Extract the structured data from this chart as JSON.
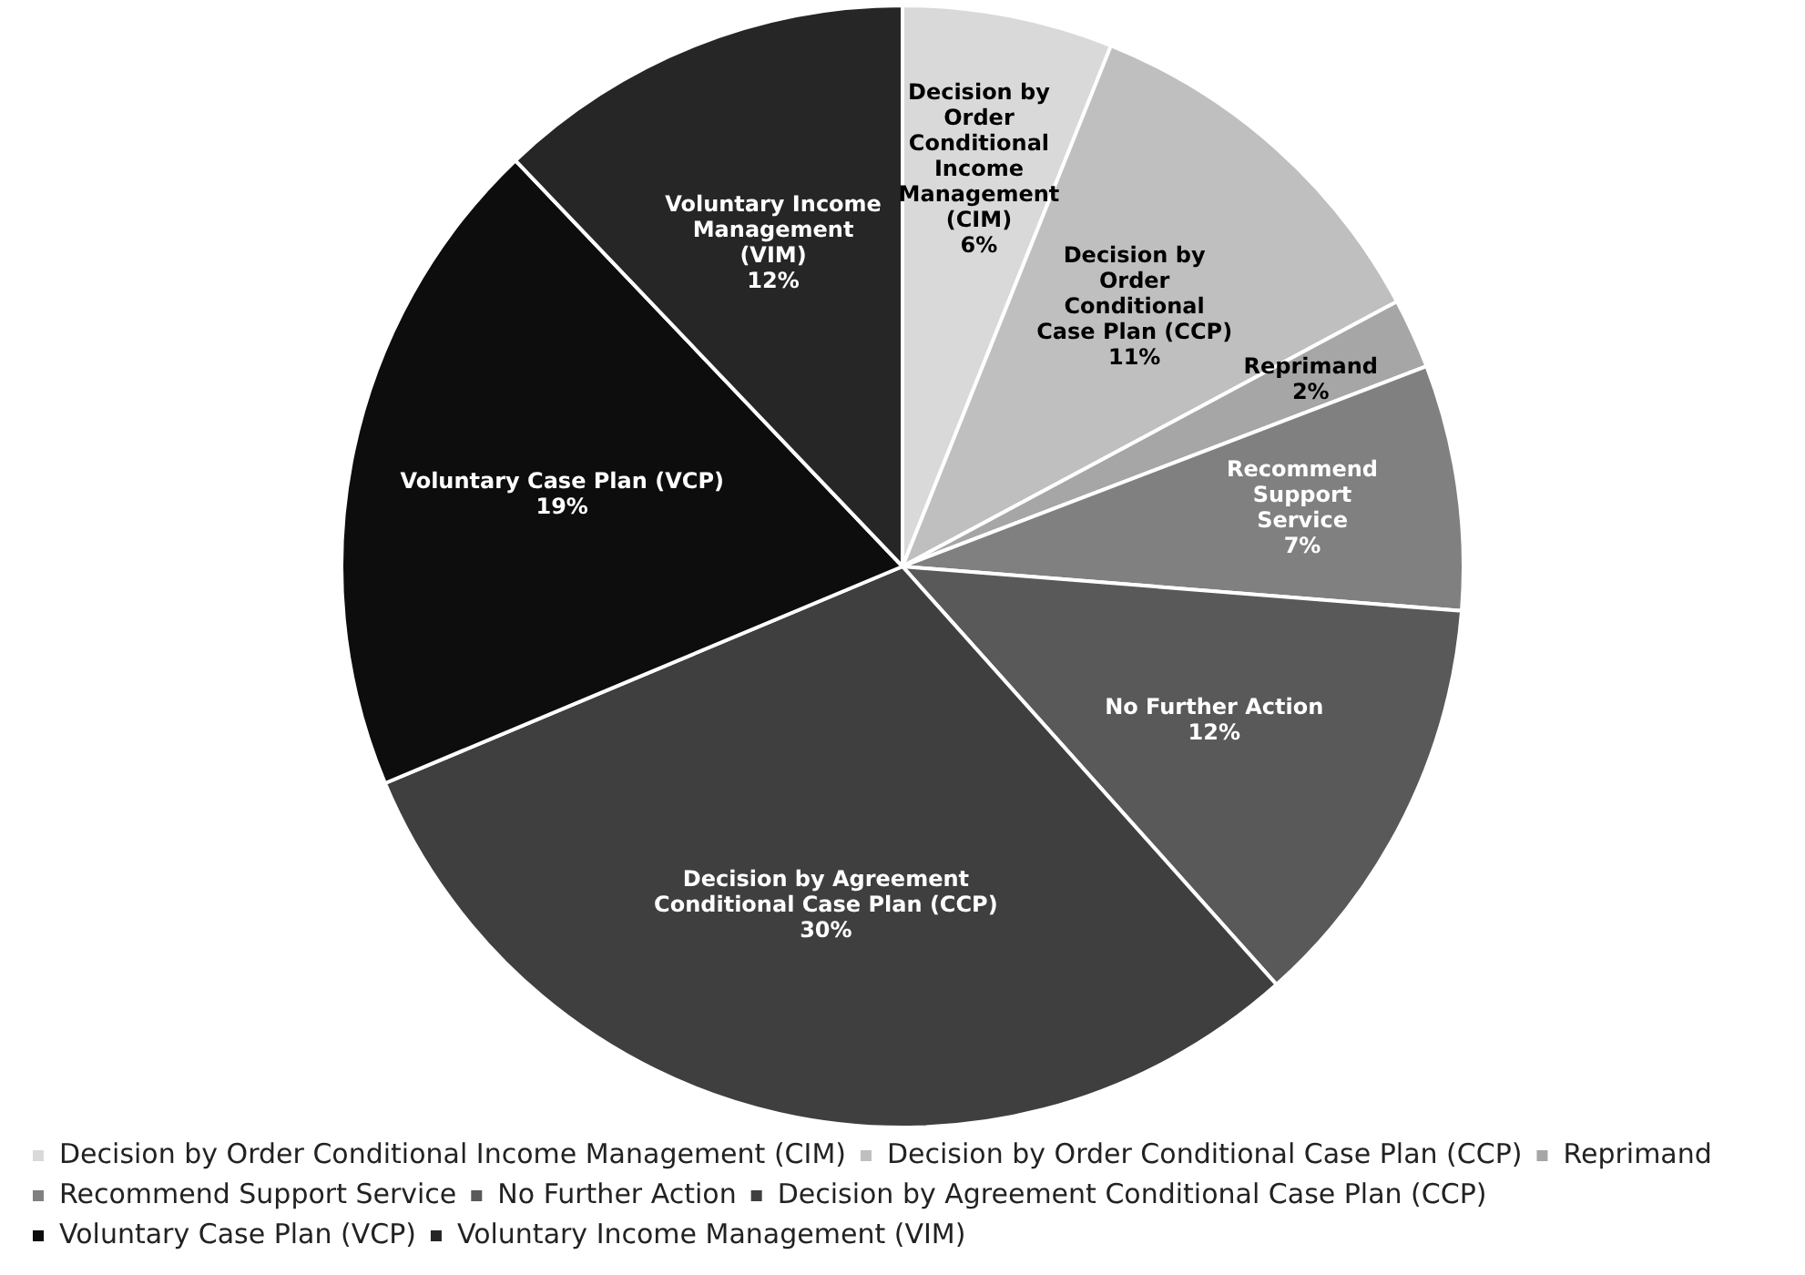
{
  "chart_data": {
    "type": "pie",
    "categories": [
      "Decision by Order Conditional Income Management (CIM)",
      "Decision by Order Conditional Case Plan (CCP)",
      "Reprimand",
      "Recommend Support Service",
      "No Further Action",
      "Decision by Agreement Conditional Case Plan (CCP)",
      "Voluntary Case Plan (VCP)",
      "Voluntary Income Management (VIM)"
    ],
    "values": [
      6,
      11,
      2,
      7,
      12,
      30,
      19,
      12
    ],
    "value_labels": [
      "6%",
      "11%",
      "2%",
      "7%",
      "12%",
      "30%",
      "19%",
      "12%"
    ],
    "colors": [
      "#d9d9d9",
      "#bfbfbf",
      "#a6a6a6",
      "#808080",
      "#595959",
      "#3f3f3f",
      "#0d0d0d",
      "#262626"
    ],
    "legend": "bottom"
  }
}
